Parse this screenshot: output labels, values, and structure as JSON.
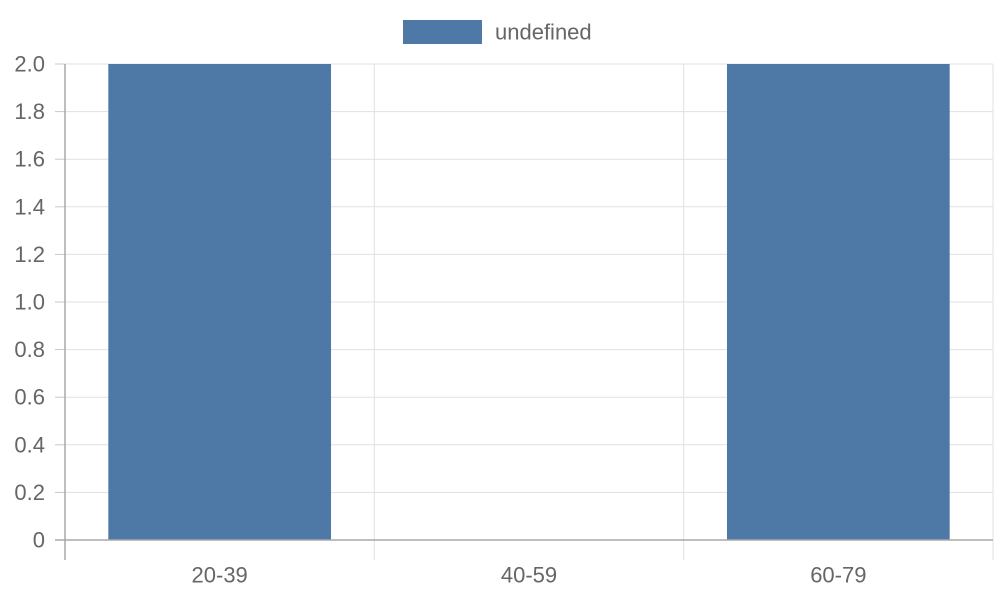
{
  "chart_data": {
    "type": "bar",
    "title": "",
    "xlabel": "",
    "ylabel": "",
    "categories": [
      "20-39",
      "40-59",
      "60-79"
    ],
    "series": [
      {
        "name": "undefined",
        "values": [
          2,
          0,
          2
        ],
        "color": "#4e79a7"
      }
    ],
    "ylim": [
      0,
      2
    ],
    "yticks": [
      "0",
      "0.2",
      "0.4",
      "0.6",
      "0.8",
      "1.0",
      "1.2",
      "1.4",
      "1.6",
      "1.8",
      "2.0"
    ],
    "grid": true,
    "legend_position": "top-center"
  }
}
